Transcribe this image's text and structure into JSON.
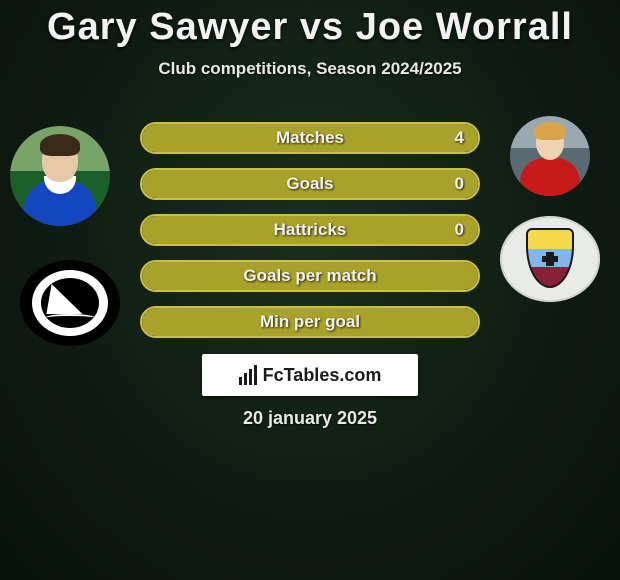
{
  "title_line": "Gary Sawyer vs Joe Worrall",
  "subtitle": "Club competitions, Season 2024/2025",
  "colors": {
    "accent": "#a9a22a",
    "accent_border": "#c9c044",
    "text": "#f0f0f0",
    "background_center": "#1a2f1e",
    "background_edge": "#08120c",
    "logo_bg": "#ffffff"
  },
  "players": {
    "left": {
      "name": "Gary Sawyer",
      "club": "Plymouth"
    },
    "right": {
      "name": "Joe Worrall",
      "club": "Burnley"
    }
  },
  "stats": [
    {
      "label": "Matches",
      "value": "4",
      "fill_pct": 100
    },
    {
      "label": "Goals",
      "value": "0",
      "fill_pct": 100
    },
    {
      "label": "Hattricks",
      "value": "0",
      "fill_pct": 100
    },
    {
      "label": "Goals per match",
      "value": "",
      "fill_pct": 100
    },
    {
      "label": "Min per goal",
      "value": "",
      "fill_pct": 100
    }
  ],
  "logo_text": "FcTables.com",
  "date": "20 january 2025"
}
